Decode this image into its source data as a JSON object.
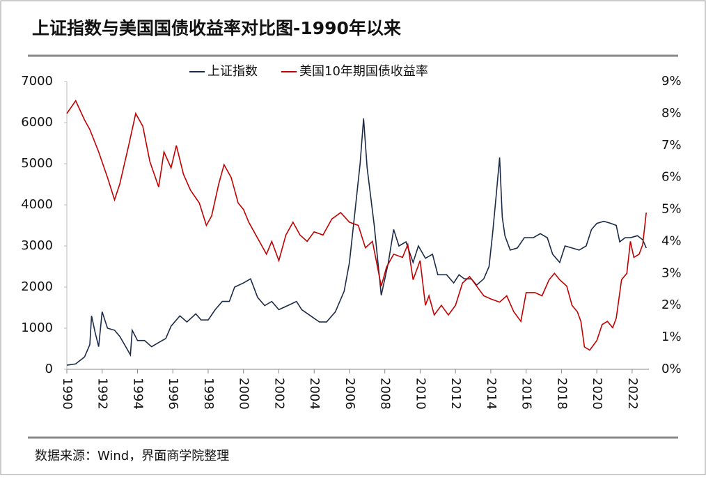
{
  "chart_data": {
    "type": "line",
    "title": "上证指数与美国国债收益率对比图-1990年以来",
    "source": "数据来源：Wind，界面商学院整理",
    "xlim": [
      1990,
      2022.95
    ],
    "xticks": [
      1990,
      1992,
      1994,
      1996,
      1998,
      2000,
      2002,
      2004,
      2006,
      2008,
      2010,
      2012,
      2014,
      2016,
      2018,
      2020,
      2022
    ],
    "ylim": [
      0,
      7000
    ],
    "yticks": [
      0,
      1000,
      2000,
      3000,
      4000,
      5000,
      6000,
      7000
    ],
    "y2lim": [
      0,
      9
    ],
    "y2ticks": [
      {
        "value": 0,
        "label": "0%"
      },
      {
        "value": 1,
        "label": "1%"
      },
      {
        "value": 2,
        "label": "2%"
      },
      {
        "value": 3,
        "label": "3%"
      },
      {
        "value": 4,
        "label": "4%"
      },
      {
        "value": 5,
        "label": "5%"
      },
      {
        "value": 6,
        "label": "6%"
      },
      {
        "value": 7,
        "label": "7%"
      },
      {
        "value": 8,
        "label": "8%"
      },
      {
        "value": 9,
        "label": "9%"
      }
    ],
    "legend": "top",
    "series": [
      {
        "name": "上证指数",
        "color": "#1b2a47",
        "x": [
          1990.0,
          1990.5,
          1991.0,
          1991.3,
          1991.4,
          1991.6,
          1991.8,
          1992.0,
          1992.3,
          1992.7,
          1993.0,
          1993.4,
          1993.6,
          1993.7,
          1994.0,
          1994.4,
          1994.8,
          1995.2,
          1995.6,
          1995.9,
          1996.4,
          1996.8,
          1997.3,
          1997.6,
          1998.0,
          1998.4,
          1998.8,
          1999.2,
          1999.5,
          2000.0,
          2000.4,
          2000.8,
          2001.2,
          2001.6,
          2002.0,
          2002.5,
          2003.0,
          2003.3,
          2003.8,
          2004.3,
          2004.7,
          2005.2,
          2005.7,
          2006.0,
          2006.3,
          2006.6,
          2006.8,
          2007.0,
          2007.4,
          2007.8,
          2008.2,
          2008.5,
          2008.8,
          2009.2,
          2009.6,
          2009.9,
          2010.3,
          2010.7,
          2011.0,
          2011.5,
          2011.9,
          2012.2,
          2012.5,
          2012.9,
          2013.2,
          2013.6,
          2013.9,
          2014.1,
          2014.3,
          2014.5,
          2014.65,
          2014.8,
          2015.1,
          2015.5,
          2015.9,
          2016.4,
          2016.8,
          2017.2,
          2017.5,
          2017.9,
          2018.2,
          2018.6,
          2019.0,
          2019.4,
          2019.7,
          2020.0,
          2020.4,
          2020.8,
          2021.1,
          2021.3,
          2021.6,
          2021.9,
          2022.3,
          2022.6,
          2022.8
        ],
        "values": [
          100,
          130,
          300,
          600,
          1300,
          900,
          550,
          1400,
          1000,
          950,
          800,
          500,
          350,
          950,
          700,
          700,
          550,
          650,
          750,
          1050,
          1300,
          1150,
          1350,
          1200,
          1200,
          1450,
          1650,
          1650,
          2000,
          2100,
          2200,
          1750,
          1550,
          1650,
          1450,
          1550,
          1650,
          1450,
          1300,
          1150,
          1150,
          1400,
          1900,
          2600,
          3800,
          5000,
          6100,
          4900,
          3500,
          1800,
          2600,
          3400,
          3000,
          3100,
          2600,
          3000,
          2700,
          2800,
          2300,
          2300,
          2100,
          2300,
          2200,
          2200,
          2050,
          2200,
          2500,
          3300,
          4200,
          5150,
          3700,
          3250,
          2900,
          2950,
          3200,
          3200,
          3300,
          3200,
          2800,
          2600,
          3000,
          2950,
          2900,
          3000,
          3400,
          3550,
          3600,
          3550,
          3500,
          3100,
          3200,
          3200,
          3250,
          3150,
          2950
        ]
      },
      {
        "name": "美国10年期国债收益率",
        "color": "#c00000",
        "axis": "y2",
        "x": [
          1990.0,
          1990.5,
          1991.0,
          1991.3,
          1991.8,
          1992.3,
          1992.7,
          1993.0,
          1993.5,
          1993.9,
          1994.3,
          1994.7,
          1995.2,
          1995.5,
          1995.9,
          1996.2,
          1996.6,
          1997.0,
          1997.5,
          1997.9,
          1998.2,
          1998.6,
          1998.9,
          1999.3,
          1999.7,
          2000.0,
          2000.3,
          2000.7,
          2001.0,
          2001.3,
          2001.6,
          2002.0,
          2002.4,
          2002.8,
          2003.2,
          2003.6,
          2004.0,
          2004.5,
          2005.0,
          2005.5,
          2006.0,
          2006.5,
          2006.9,
          2007.3,
          2007.8,
          2008.1,
          2008.5,
          2009.0,
          2009.3,
          2009.6,
          2010.0,
          2010.3,
          2010.5,
          2010.8,
          2011.2,
          2011.6,
          2012.0,
          2012.4,
          2012.8,
          2013.2,
          2013.6,
          2014.0,
          2014.5,
          2014.9,
          2015.3,
          2015.7,
          2016.0,
          2016.5,
          2016.9,
          2017.3,
          2017.6,
          2017.9,
          2018.3,
          2018.6,
          2018.9,
          2019.1,
          2019.3,
          2019.6,
          2020.0,
          2020.3,
          2020.6,
          2020.9,
          2021.1,
          2021.4,
          2021.7,
          2021.9,
          2022.1,
          2022.4,
          2022.6,
          2022.8
        ],
        "values": [
          8.0,
          8.4,
          7.8,
          7.5,
          6.8,
          6.0,
          5.3,
          5.8,
          7.0,
          8.0,
          7.6,
          6.5,
          5.7,
          6.8,
          6.3,
          7.0,
          6.1,
          5.6,
          5.2,
          4.5,
          4.8,
          5.8,
          6.4,
          6.0,
          5.2,
          5.0,
          4.6,
          4.2,
          3.9,
          3.6,
          4.0,
          3.4,
          4.2,
          4.6,
          4.2,
          4.0,
          4.3,
          4.2,
          4.7,
          4.9,
          4.6,
          4.5,
          3.8,
          4.0,
          2.6,
          3.2,
          3.6,
          3.5,
          3.9,
          2.8,
          3.4,
          2.0,
          2.3,
          1.7,
          2.0,
          1.7,
          2.0,
          2.7,
          2.9,
          2.6,
          2.3,
          2.2,
          2.1,
          2.3,
          1.8,
          1.5,
          2.4,
          2.4,
          2.3,
          2.8,
          3.0,
          2.8,
          2.6,
          2.0,
          1.8,
          1.5,
          0.7,
          0.6,
          0.9,
          1.4,
          1.5,
          1.3,
          1.6,
          2.8,
          3.0,
          4.0,
          3.5,
          3.6,
          3.9,
          4.9
        ]
      }
    ]
  }
}
